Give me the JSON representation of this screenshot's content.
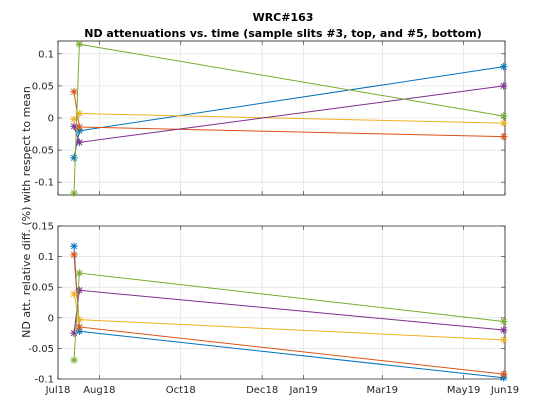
{
  "figure": {
    "title_line1": "WRC#163",
    "title_line2": "ND attenuations vs. time (sample slits #3, top, and #5, bottom)",
    "ylabel": "ND att. relative diff. (%) with respect to mean"
  },
  "colors": [
    "#0072BD",
    "#D95319",
    "#EDB120",
    "#7E2F8E",
    "#77AC30"
  ],
  "chart_data": [
    {
      "type": "line",
      "marker": "asterisk",
      "grid": true,
      "x_type": "date",
      "xlim": [
        "2018-07-01",
        "2019-06-01"
      ],
      "xticks": [
        "2018-07-01",
        "2018-08-01",
        "2018-10-01",
        "2018-12-01",
        "2019-01-01",
        "2019-03-01",
        "2019-05-01",
        "2019-06-01"
      ],
      "xticklabels": [
        "Jul18",
        "Aug18",
        "Oct18",
        "Dec18",
        "Jan19",
        "Mar19",
        "May19",
        "Jun19"
      ],
      "show_xticklabels": false,
      "ylim": [
        -0.12,
        0.12
      ],
      "yticks": [
        -0.1,
        -0.05,
        0,
        0.05,
        0.1
      ],
      "yticklabels": [
        "-0.1",
        "-0.05",
        "0",
        "0.05",
        "0.1"
      ],
      "x": [
        "2018-07-13",
        "2018-07-17",
        "2019-05-31"
      ],
      "series": [
        {
          "values": [
            -0.062,
            -0.02,
            0.08
          ]
        },
        {
          "values": [
            0.041,
            -0.014,
            -0.029
          ]
        },
        {
          "values": [
            -0.002,
            0.007,
            -0.008
          ]
        },
        {
          "values": [
            -0.013,
            -0.038,
            0.05
          ]
        },
        {
          "values": [
            -0.117,
            0.115,
            0.003
          ]
        }
      ]
    },
    {
      "type": "line",
      "marker": "asterisk",
      "grid": true,
      "x_type": "date",
      "xlim": [
        "2018-07-01",
        "2019-06-01"
      ],
      "xticks": [
        "2018-07-01",
        "2018-08-01",
        "2018-10-01",
        "2018-12-01",
        "2019-01-01",
        "2019-03-01",
        "2019-05-01",
        "2019-06-01"
      ],
      "xticklabels": [
        "Jul18",
        "Aug18",
        "Oct18",
        "Dec18",
        "Jan19",
        "Mar19",
        "May19",
        "Jun19"
      ],
      "show_xticklabels": true,
      "ylim": [
        -0.1,
        0.15
      ],
      "yticks": [
        -0.1,
        -0.05,
        0,
        0.05,
        0.1,
        0.15
      ],
      "yticklabels": [
        "-0.1",
        "-0.05",
        "0",
        "0.05",
        "0.1",
        "0.15"
      ],
      "x": [
        "2018-07-13",
        "2018-07-17",
        "2019-05-31"
      ],
      "series": [
        {
          "values": [
            0.117,
            -0.022,
            -0.098
          ]
        },
        {
          "values": [
            0.103,
            -0.015,
            -0.092
          ]
        },
        {
          "values": [
            0.039,
            -0.003,
            -0.036
          ]
        },
        {
          "values": [
            -0.025,
            0.045,
            -0.02
          ]
        },
        {
          "values": [
            -0.069,
            0.073,
            -0.006
          ]
        }
      ]
    }
  ]
}
